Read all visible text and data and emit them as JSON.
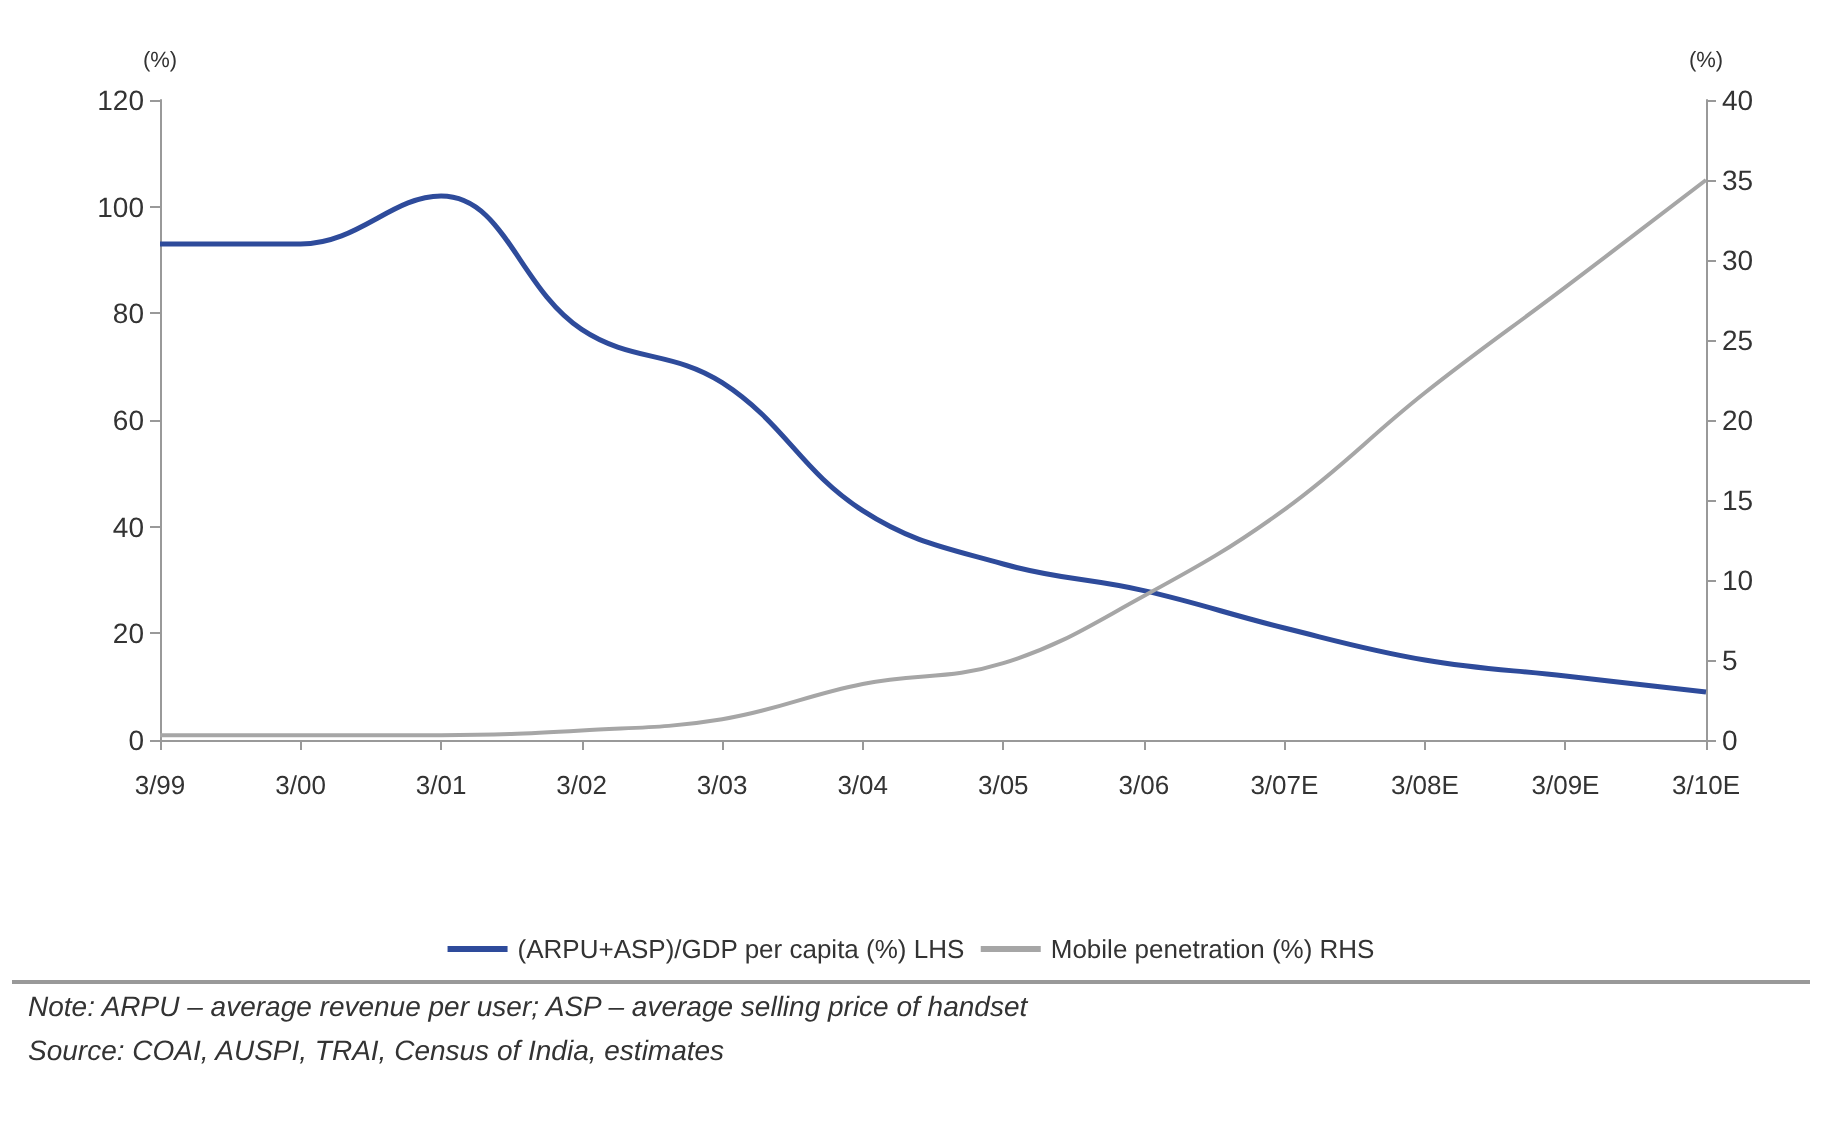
{
  "chart_data": {
    "type": "line",
    "ylabel": "(%)",
    "y2label": "(%)",
    "categories": [
      "3/99",
      "3/00",
      "3/01",
      "3/02",
      "3/03",
      "3/04",
      "3/05",
      "3/06",
      "3/07E",
      "3/08E",
      "3/09E",
      "3/10E"
    ],
    "series": [
      {
        "name": "(ARPU+ASP)/GDP per capita (%) LHS",
        "color": "#2e4b9b",
        "values": [
          93,
          93,
          102,
          77,
          67,
          43,
          33,
          28,
          21,
          15,
          12,
          9
        ]
      },
      {
        "name": "Mobile penetration (%) RHS",
        "color": "#a6a6a6",
        "axis": "y2",
        "values": [
          0.3,
          0.3,
          0.3,
          0.6,
          1.3,
          3.5,
          4.8,
          9,
          14.4,
          21.7,
          28.3,
          35
        ]
      }
    ],
    "ylim": [
      0,
      120
    ],
    "yticks": [
      0,
      20,
      40,
      60,
      80,
      100,
      120
    ],
    "y2lim": [
      0,
      40
    ],
    "y2ticks": [
      0,
      5,
      10,
      15,
      20,
      25,
      30,
      35,
      40
    ],
    "grid": false,
    "legend": "bottom",
    "marker": "none",
    "line_style": "solid",
    "annotations": [
      "Note: ARPU – average revenue per user; ASP – average selling price of handset",
      "Source: COAI, AUSPI, TRAI, Census of India, estimates"
    ]
  }
}
